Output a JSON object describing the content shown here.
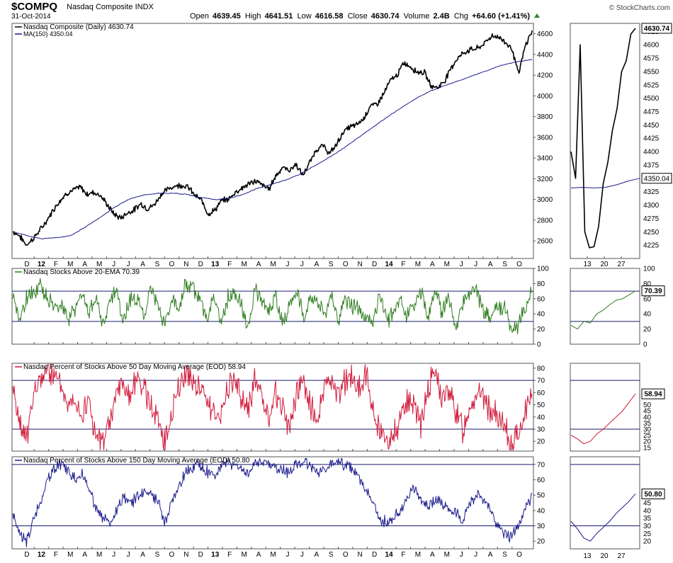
{
  "header": {
    "symbol": "$COMPQ",
    "name": "Nasdaq Composite INDX",
    "date": "31-Oct-2014",
    "credit": "© StockCharts.com",
    "open_label": "Open",
    "open": "4639.45",
    "high_label": "High",
    "high": "4641.51",
    "low_label": "Low",
    "low": "4616.58",
    "close_label": "Close",
    "close": "4630.74",
    "volume_label": "Volume",
    "volume": "2.4B",
    "chg_label": "Chg",
    "chg": "+64.60 (+1.41%)"
  },
  "colors": {
    "price": "#000000",
    "ma": "#1a1a8c",
    "ema20": "#2e7d1f",
    "pct50": "#d11a3a",
    "pct150": "#1a1a8c",
    "hline": "#1a1a6e"
  },
  "chart_data": [
    {
      "type": "line",
      "panel": "price",
      "legend": [
        "Nasdaq Composite (Daily) 4630.74",
        "MA(150) 4350.04"
      ],
      "y_ticks": [
        2600,
        2800,
        3000,
        3200,
        3400,
        3600,
        3800,
        4000,
        4200,
        4400,
        4600
      ],
      "ylim": [
        2430,
        4700
      ],
      "x_ticks": [
        "D",
        "12",
        "F",
        "M",
        "A",
        "M",
        "J",
        "J",
        "A",
        "S",
        "O",
        "N",
        "D",
        "13",
        "F",
        "M",
        "A",
        "M",
        "J",
        "J",
        "A",
        "S",
        "O",
        "N",
        "D",
        "14",
        "F",
        "M",
        "A",
        "M",
        "J",
        "J",
        "A",
        "S",
        "O"
      ],
      "bold_ticks": [
        "12",
        "13",
        "14"
      ],
      "series": [
        {
          "name": "Nasdaq Composite (Daily)",
          "values": [
            2690,
            2650,
            2560,
            2620,
            2700,
            2790,
            2900,
            2990,
            3060,
            3090,
            3120,
            3050,
            3070,
            3040,
            2950,
            2860,
            2820,
            2870,
            2900,
            2960,
            2910,
            2950,
            3050,
            3100,
            3130,
            3140,
            3120,
            3040,
            2990,
            2860,
            2900,
            2990,
            3000,
            3070,
            3110,
            3150,
            3180,
            3140,
            3100,
            3230,
            3310,
            3280,
            3340,
            3230,
            3350,
            3480,
            3520,
            3440,
            3530,
            3650,
            3700,
            3720,
            3780,
            3900,
            3920,
            4020,
            4150,
            4200,
            4320,
            4280,
            4230,
            4230,
            4100,
            4080,
            4140,
            4270,
            4370,
            4420,
            4450,
            4460,
            4510,
            4580,
            4570,
            4520,
            4460,
            4210,
            4480,
            4630
          ]
        },
        {
          "name": "MA(150)",
          "values": [
            2690,
            2650,
            2620,
            2630,
            2650,
            2730,
            2820,
            2920,
            3000,
            3040,
            3060,
            3060,
            3050,
            3020,
            3000,
            3010,
            3050,
            3110,
            3150,
            3190,
            3250,
            3330,
            3410,
            3500,
            3600,
            3700,
            3800,
            3890,
            3980,
            4050,
            4100,
            4150,
            4200,
            4250,
            4300,
            4330,
            4350
          ]
        },
        {
          "name": "Nasdaq Composite (zoom)",
          "values": [
            4400,
            4350,
            4600,
            4250,
            4220,
            4222,
            4260,
            4340,
            4380,
            4440,
            4480,
            4550,
            4570,
            4620,
            4630.74
          ]
        },
        {
          "name": "MA(150) (zoom)",
          "values": [
            4332,
            4333,
            4332,
            4333,
            4338,
            4345,
            4350.04
          ]
        }
      ],
      "zoom_y_ticks": [
        4225,
        4250,
        4275,
        4300,
        4325,
        4350,
        4375,
        4400,
        4425,
        4450,
        4475,
        4500,
        4525,
        4550,
        4575,
        4600,
        4625
      ],
      "zoom_x_ticks": [
        "13",
        "20",
        "27"
      ],
      "last_labels": [
        "4630.74",
        "4350.04"
      ]
    },
    {
      "type": "line",
      "panel": "ema20",
      "legend": "Nasdaq Stocks Above 20-EMA 70.39",
      "y_ticks": [
        0,
        20,
        40,
        60,
        80,
        100
      ],
      "ylim": [
        0,
        100
      ],
      "hlines": [
        70,
        30
      ],
      "series": [
        {
          "name": "Nasdaq Stocks Above 20-EMA",
          "values": [
            60,
            30,
            60,
            70,
            75,
            65,
            45,
            55,
            30,
            50,
            65,
            40,
            60,
            25,
            55,
            70,
            30,
            60,
            55,
            40,
            70,
            50,
            25,
            60,
            45,
            80,
            70,
            55,
            35,
            65,
            30,
            60,
            70,
            50,
            25,
            75,
            55,
            40,
            65,
            25,
            50,
            70,
            35,
            60,
            55,
            40,
            65,
            30,
            60,
            50,
            45,
            35,
            25,
            70,
            30,
            45,
            60,
            35,
            55,
            70,
            30,
            75,
            40,
            60,
            25,
            55,
            65,
            70,
            40,
            35,
            50,
            45,
            20,
            25,
            50,
            70.39
          ]
        }
      ],
      "zoom_values": [
        25,
        20,
        30,
        28,
        40,
        45,
        52,
        58,
        60,
        65,
        70.39
      ],
      "last_label": "70.39"
    },
    {
      "type": "line",
      "panel": "pct50",
      "legend": "Nasdaq Percent of Stocks Above 50 Day Moving Average (EOD) 58.94",
      "y_ticks": [
        20,
        30,
        40,
        50,
        60,
        70,
        80
      ],
      "ylim": [
        12,
        84
      ],
      "hlines": [
        70,
        30
      ],
      "series": [
        {
          "name": "Nasdaq Percent of Stocks Above 50 Day Moving Average (EOD)",
          "values": [
            65,
            30,
            25,
            55,
            72,
            80,
            75,
            65,
            50,
            60,
            40,
            55,
            22,
            18,
            35,
            60,
            70,
            55,
            75,
            62,
            50,
            35,
            20,
            45,
            65,
            78,
            70,
            65,
            55,
            45,
            38,
            65,
            70,
            55,
            45,
            70,
            55,
            40,
            60,
            45,
            30,
            60,
            70,
            50,
            35,
            65,
            68,
            55,
            70,
            72,
            65,
            75,
            45,
            30,
            22,
            25,
            40,
            55,
            50,
            35,
            65,
            78,
            55,
            60,
            45,
            30,
            50,
            60,
            55,
            45,
            40,
            30,
            18,
            25,
            45,
            58.94
          ]
        }
      ],
      "zoom_values": [
        25,
        22,
        18,
        20,
        26,
        30,
        35,
        40,
        45,
        52,
        58.94
      ],
      "zoom_y_ticks": [
        15,
        20,
        25,
        30,
        35,
        40,
        45,
        50,
        55
      ],
      "last_label": "58.94"
    },
    {
      "type": "line",
      "panel": "pct150",
      "legend": "Nasdaq Percent of Stocks Above 150 Day Moving Average (EOD) 50.80",
      "y_ticks": [
        20,
        30,
        40,
        50,
        60,
        70
      ],
      "ylim": [
        15,
        75
      ],
      "hlines": [
        70,
        30
      ],
      "series": [
        {
          "name": "Nasdaq Percent of Stocks Above 150 Day Moving Average (EOD)",
          "values": [
            38,
            25,
            20,
            35,
            45,
            60,
            68,
            70,
            66,
            60,
            65,
            55,
            42,
            36,
            30,
            40,
            50,
            45,
            48,
            52,
            50,
            45,
            32,
            45,
            55,
            65,
            68,
            70,
            66,
            62,
            68,
            72,
            70,
            66,
            64,
            70,
            72,
            70,
            68,
            66,
            64,
            70,
            72,
            68,
            65,
            66,
            70,
            72,
            70,
            66,
            60,
            55,
            45,
            35,
            32,
            35,
            40,
            50,
            55,
            45,
            42,
            48,
            44,
            40,
            38,
            33,
            45,
            50,
            48,
            40,
            30,
            25,
            22,
            30,
            40,
            50.8
          ]
        }
      ],
      "zoom_values": [
        33,
        28,
        22,
        20,
        25,
        29,
        33,
        38,
        42,
        46,
        50.8
      ],
      "zoom_y_ticks": [
        20,
        25,
        30,
        35,
        40,
        45
      ],
      "last_label": "50.80"
    }
  ]
}
